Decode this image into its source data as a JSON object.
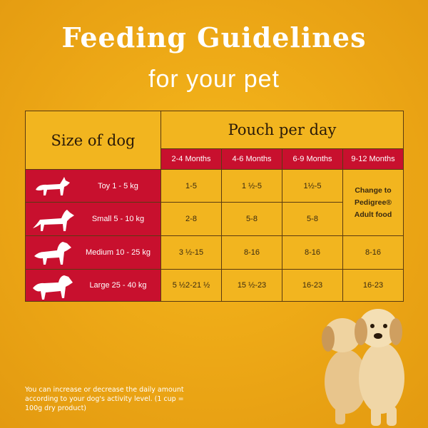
{
  "header": {
    "title": "Feeding Guidelines",
    "subtitle": "for your pet"
  },
  "table": {
    "size_header": "Size of dog",
    "pouch_header": "Pouch per day",
    "columns": [
      "2-4 Months",
      "4-6 Months",
      "6-9 Months",
      "9-12 Months"
    ],
    "rows": [
      [
        "Toy 1 - 5 kg",
        "1-5",
        "1 ½-5",
        "1½-5"
      ],
      [
        "Small 5 - 10 kg",
        "2-8",
        "5-8",
        "5-8"
      ],
      [
        "Medium 10 - 25 kg",
        "3 ½-15",
        "8-16",
        "8-16",
        "8-16"
      ],
      [
        "Large 25 - 40 kg",
        "5 ½2-21 ½",
        "15 ½-23",
        "16-23",
        "16-23"
      ]
    ],
    "merged_note": [
      "Change to",
      "Pedigree®",
      "Adult food"
    ]
  },
  "footnote": "You can increase or decrease the daily amount according to your dog's activity level. (1 cup = 100g dry product)"
}
